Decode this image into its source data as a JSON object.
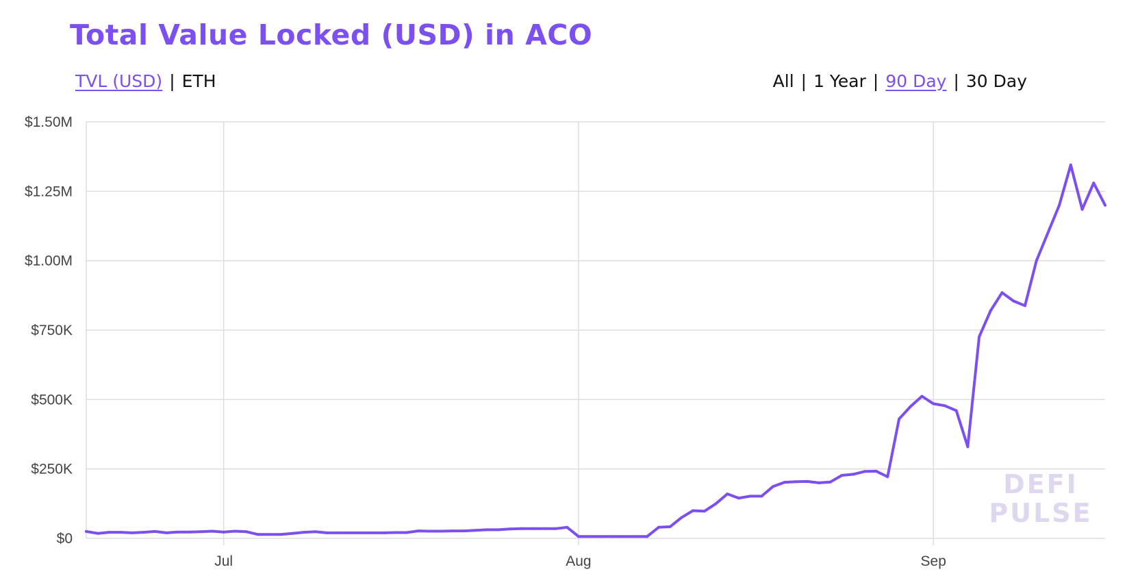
{
  "header": {
    "title": "Total Value Locked (USD) in ACO",
    "metric_options": [
      {
        "label": "TVL (USD)",
        "active": true
      },
      {
        "label": "ETH",
        "active": false
      }
    ],
    "range_options": [
      {
        "label": "All",
        "active": false
      },
      {
        "label": "1 Year",
        "active": false
      },
      {
        "label": "90 Day",
        "active": true
      },
      {
        "label": "30 Day",
        "active": false
      }
    ],
    "separator": "|"
  },
  "watermark": {
    "line1": "DEFI",
    "line2": "PULSE"
  },
  "colors": {
    "accent": "#7b4ff0",
    "grid": "#dddddd",
    "watermark": "#ddd8f0"
  },
  "chart_data": {
    "type": "line",
    "title": "Total Value Locked (USD) in ACO",
    "x_start": "2020-06-19",
    "x_end": "2020-09-16",
    "xticks": [
      {
        "date": "2020-07-01",
        "label": "Jul"
      },
      {
        "date": "2020-08-01",
        "label": "Aug"
      },
      {
        "date": "2020-09-01",
        "label": "Sep"
      }
    ],
    "ylim": [
      0,
      1500000
    ],
    "yticks": [
      {
        "value": 0,
        "label": "$0"
      },
      {
        "value": 250000,
        "label": "$250K"
      },
      {
        "value": 500000,
        "label": "$500K"
      },
      {
        "value": 750000,
        "label": "$750K"
      },
      {
        "value": 1000000,
        "label": "$1.00M"
      },
      {
        "value": 1250000,
        "label": "$1.25M"
      },
      {
        "value": 1500000,
        "label": "$1.50M"
      }
    ],
    "grid": true,
    "series": [
      {
        "color": "#7b4ff0",
        "points": [
          [
            "2020-06-19",
            25000
          ],
          [
            "2020-06-20",
            18000
          ],
          [
            "2020-06-21",
            22000
          ],
          [
            "2020-06-22",
            22000
          ],
          [
            "2020-06-23",
            20000
          ],
          [
            "2020-06-24",
            22000
          ],
          [
            "2020-06-25",
            25000
          ],
          [
            "2020-06-26",
            20000
          ],
          [
            "2020-06-27",
            23000
          ],
          [
            "2020-06-28",
            23000
          ],
          [
            "2020-06-29",
            24000
          ],
          [
            "2020-06-30",
            26000
          ],
          [
            "2020-07-01",
            23000
          ],
          [
            "2020-07-02",
            26000
          ],
          [
            "2020-07-03",
            24000
          ],
          [
            "2020-07-04",
            14000
          ],
          [
            "2020-07-05",
            14000
          ],
          [
            "2020-07-06",
            14000
          ],
          [
            "2020-07-07",
            18000
          ],
          [
            "2020-07-08",
            22000
          ],
          [
            "2020-07-09",
            24000
          ],
          [
            "2020-07-10",
            20000
          ],
          [
            "2020-07-11",
            20000
          ],
          [
            "2020-07-12",
            20000
          ],
          [
            "2020-07-13",
            20000
          ],
          [
            "2020-07-14",
            20000
          ],
          [
            "2020-07-15",
            20000
          ],
          [
            "2020-07-16",
            21000
          ],
          [
            "2020-07-17",
            21000
          ],
          [
            "2020-07-18",
            27000
          ],
          [
            "2020-07-19",
            26000
          ],
          [
            "2020-07-20",
            26000
          ],
          [
            "2020-07-21",
            27000
          ],
          [
            "2020-07-22",
            27000
          ],
          [
            "2020-07-23",
            29000
          ],
          [
            "2020-07-24",
            31000
          ],
          [
            "2020-07-25",
            31000
          ],
          [
            "2020-07-26",
            34000
          ],
          [
            "2020-07-27",
            35000
          ],
          [
            "2020-07-28",
            35000
          ],
          [
            "2020-07-29",
            35000
          ],
          [
            "2020-07-30",
            35000
          ],
          [
            "2020-07-31",
            40000
          ],
          [
            "2020-08-01",
            7000
          ],
          [
            "2020-08-02",
            7000
          ],
          [
            "2020-08-03",
            7000
          ],
          [
            "2020-08-04",
            7000
          ],
          [
            "2020-08-05",
            7000
          ],
          [
            "2020-08-06",
            7000
          ],
          [
            "2020-08-07",
            7000
          ],
          [
            "2020-08-08",
            40000
          ],
          [
            "2020-08-09",
            42000
          ],
          [
            "2020-08-10",
            75000
          ],
          [
            "2020-08-11",
            100000
          ],
          [
            "2020-08-12",
            98000
          ],
          [
            "2020-08-13",
            125000
          ],
          [
            "2020-08-14",
            160000
          ],
          [
            "2020-08-15",
            145000
          ],
          [
            "2020-08-16",
            152000
          ],
          [
            "2020-08-17",
            152000
          ],
          [
            "2020-08-18",
            187000
          ],
          [
            "2020-08-19",
            202000
          ],
          [
            "2020-08-20",
            204000
          ],
          [
            "2020-08-21",
            205000
          ],
          [
            "2020-08-22",
            200000
          ],
          [
            "2020-08-23",
            203000
          ],
          [
            "2020-08-24",
            227000
          ],
          [
            "2020-08-25",
            231000
          ],
          [
            "2020-08-26",
            241000
          ],
          [
            "2020-08-27",
            242000
          ],
          [
            "2020-08-28",
            222000
          ],
          [
            "2020-08-29",
            430000
          ],
          [
            "2020-08-30",
            475000
          ],
          [
            "2020-08-31",
            512000
          ],
          [
            "2020-09-01",
            485000
          ],
          [
            "2020-09-02",
            478000
          ],
          [
            "2020-09-03",
            460000
          ],
          [
            "2020-09-04",
            330000
          ],
          [
            "2020-09-05",
            726000
          ],
          [
            "2020-09-06",
            820000
          ],
          [
            "2020-09-07",
            885000
          ],
          [
            "2020-09-08",
            855000
          ],
          [
            "2020-09-09",
            838000
          ],
          [
            "2020-09-10",
            1000000
          ],
          [
            "2020-09-11",
            1100000
          ],
          [
            "2020-09-12",
            1200000
          ],
          [
            "2020-09-13",
            1345000
          ],
          [
            "2020-09-14",
            1185000
          ],
          [
            "2020-09-15",
            1280000
          ],
          [
            "2020-09-16",
            1200000
          ]
        ]
      }
    ]
  }
}
